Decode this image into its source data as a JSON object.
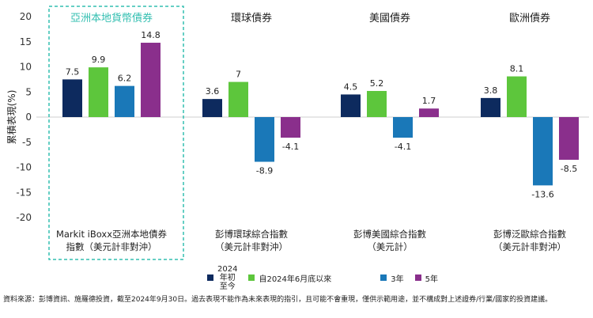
{
  "chart_data": {
    "type": "bar",
    "ylabel": "累積表現(%)",
    "ylim": [
      -20,
      20
    ],
    "yticks": [
      20,
      15,
      10,
      5,
      0,
      -5,
      -10,
      -15,
      -20
    ],
    "colors": [
      "#0d2a5e",
      "#5dc63c",
      "#1a78b8",
      "#8a2f8c"
    ],
    "highlight_color": "#33bfb1",
    "series": [
      {
        "name": "2024年初至今",
        "name_lines": [
          "2024",
          "年初",
          "至今"
        ]
      },
      {
        "name": "自2024年6月底以來",
        "name_lines": [
          "自2024年6月底以來"
        ]
      },
      {
        "name": "3年",
        "name_lines": [
          "3年"
        ]
      },
      {
        "name": "5年",
        "name_lines": [
          "5年"
        ]
      }
    ],
    "panels": [
      {
        "title": "亞洲本地貨幣債券",
        "highlighted": true,
        "index_label": [
          "Markit iBoxx亞洲本地債券",
          "指數（美元計非對沖）"
        ],
        "values": [
          7.5,
          9.9,
          6.2,
          14.8
        ]
      },
      {
        "title": "環球債券",
        "highlighted": false,
        "index_label": [
          "彭博環球綜合指數",
          "（美元計非對沖）"
        ],
        "values": [
          3.6,
          7,
          -8.9,
          -4.1
        ]
      },
      {
        "title": "美國債券",
        "highlighted": false,
        "index_label": [
          "彭博美國綜合指數",
          "（美元計）"
        ],
        "values": [
          4.5,
          5.2,
          -4.1,
          1.7
        ]
      },
      {
        "title": "歐洲債券",
        "highlighted": false,
        "index_label": [
          "彭博泛歐綜合指數",
          "（美元計非對沖）"
        ],
        "values": [
          3.8,
          8.1,
          -13.6,
          -8.5
        ]
      }
    ]
  },
  "footnote": "資料來源：彭博資訊、施羅德投資，截至2024年9月30日。過去表現不能作為未來表現的指引，且可能不會重現，僅供示範用途，並不構成對上述證券/行業/國家的投資建議。"
}
